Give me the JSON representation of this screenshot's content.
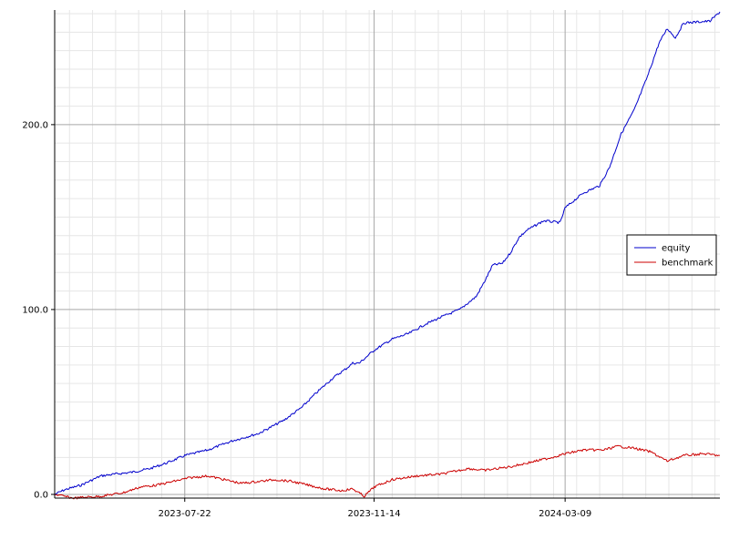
{
  "chart_data": {
    "type": "line",
    "title": "",
    "xlabel": "",
    "ylabel": "",
    "x_range": [
      "2023-05-04",
      "2024-06-11"
    ],
    "ylim": [
      -2,
      262
    ],
    "x_ticks": [
      "2023-07-22",
      "2023-11-14",
      "2024-03-09"
    ],
    "y_ticks": [
      0.0,
      100.0,
      200.0
    ],
    "y_tick_labels": [
      "0.0",
      "100.0",
      "200.0"
    ],
    "grid": true,
    "minor_grid": true,
    "legend_position": "right",
    "series": [
      {
        "name": "equity",
        "color": "#0000cc",
        "points": [
          [
            "2023-05-04",
            0
          ],
          [
            "2023-05-10",
            2.5
          ],
          [
            "2023-05-20",
            5
          ],
          [
            "2023-06-01",
            10
          ],
          [
            "2023-06-10",
            11
          ],
          [
            "2023-06-20",
            12
          ],
          [
            "2023-07-01",
            14
          ],
          [
            "2023-07-11",
            17
          ],
          [
            "2023-07-22",
            21
          ],
          [
            "2023-08-05",
            24
          ],
          [
            "2023-08-20",
            29
          ],
          [
            "2023-09-05",
            33
          ],
          [
            "2023-09-20",
            40
          ],
          [
            "2023-10-01",
            47
          ],
          [
            "2023-10-10",
            55
          ],
          [
            "2023-10-20",
            63
          ],
          [
            "2023-10-28",
            68
          ],
          [
            "2023-11-01",
            71
          ],
          [
            "2023-11-05",
            71
          ],
          [
            "2023-11-14",
            78
          ],
          [
            "2023-11-25",
            84
          ],
          [
            "2023-12-05",
            87
          ],
          [
            "2023-12-15",
            92
          ],
          [
            "2023-12-25",
            96
          ],
          [
            "2024-01-05",
            100
          ],
          [
            "2024-01-15",
            107
          ],
          [
            "2024-01-20",
            115
          ],
          [
            "2024-01-25",
            124
          ],
          [
            "2024-01-31",
            125
          ],
          [
            "2024-02-05",
            131
          ],
          [
            "2024-02-10",
            139
          ],
          [
            "2024-02-15",
            143
          ],
          [
            "2024-02-25",
            148
          ],
          [
            "2024-03-06",
            147
          ],
          [
            "2024-03-09",
            155
          ],
          [
            "2024-03-20",
            163
          ],
          [
            "2024-03-30",
            167
          ],
          [
            "2024-04-05",
            177
          ],
          [
            "2024-04-12",
            195
          ],
          [
            "2024-04-20",
            208
          ],
          [
            "2024-04-28",
            226
          ],
          [
            "2024-05-05",
            244
          ],
          [
            "2024-05-10",
            252
          ],
          [
            "2024-05-15",
            247
          ],
          [
            "2024-05-20",
            255
          ],
          [
            "2024-06-05",
            256
          ],
          [
            "2024-06-11",
            261
          ]
        ]
      },
      {
        "name": "benchmark",
        "color": "#cc0000",
        "points": [
          [
            "2023-05-04",
            0
          ],
          [
            "2023-05-15",
            -2
          ],
          [
            "2023-06-01",
            -1
          ],
          [
            "2023-06-15",
            1
          ],
          [
            "2023-06-25",
            4
          ],
          [
            "2023-07-05",
            5
          ],
          [
            "2023-07-15",
            7
          ],
          [
            "2023-07-25",
            9
          ],
          [
            "2023-08-05",
            10
          ],
          [
            "2023-08-15",
            8
          ],
          [
            "2023-08-25",
            6
          ],
          [
            "2023-09-05",
            7
          ],
          [
            "2023-09-15",
            8
          ],
          [
            "2023-09-25",
            7
          ],
          [
            "2023-10-05",
            5
          ],
          [
            "2023-10-15",
            3
          ],
          [
            "2023-10-25",
            2
          ],
          [
            "2023-11-01",
            3
          ],
          [
            "2023-11-08",
            -1
          ],
          [
            "2023-11-14",
            4
          ],
          [
            "2023-11-25",
            8
          ],
          [
            "2023-12-10",
            10
          ],
          [
            "2023-12-25",
            11
          ],
          [
            "2024-01-10",
            14
          ],
          [
            "2024-01-20",
            13
          ],
          [
            "2024-02-05",
            15
          ],
          [
            "2024-02-20",
            18
          ],
          [
            "2024-03-01",
            20
          ],
          [
            "2024-03-09",
            22
          ],
          [
            "2024-03-20",
            24
          ],
          [
            "2024-04-01",
            24
          ],
          [
            "2024-04-10",
            26
          ],
          [
            "2024-04-20",
            25
          ],
          [
            "2024-04-30",
            23
          ],
          [
            "2024-05-10",
            18
          ],
          [
            "2024-05-20",
            21
          ],
          [
            "2024-06-01",
            22
          ],
          [
            "2024-06-11",
            21
          ]
        ]
      }
    ]
  }
}
